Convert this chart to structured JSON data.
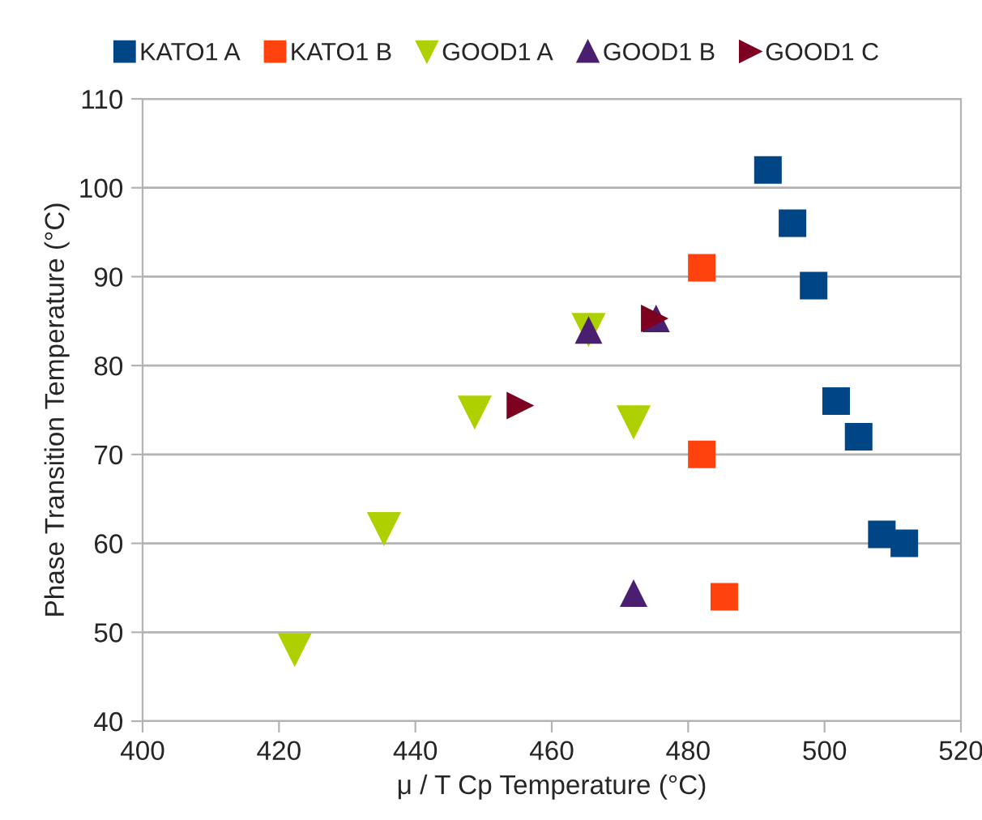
{
  "chart_data": {
    "type": "scatter",
    "xlabel": "μ / T Cp Temperature (°C)",
    "ylabel": "Phase Transition Temperature (°C)",
    "xlim": [
      400,
      520
    ],
    "xticks": [
      400,
      420,
      440,
      460,
      480,
      500,
      520
    ],
    "ylim": [
      40,
      110
    ],
    "yticks": [
      40,
      50,
      60,
      70,
      80,
      90,
      100,
      110
    ],
    "grid": "y",
    "legend": "top",
    "series": [
      {
        "name": "KATO1 A",
        "color": "#004586",
        "marker": "square",
        "x": [
          491.7,
          495.3,
          498.4,
          501.7,
          505,
          508.4,
          511.7
        ],
        "values": [
          102,
          96,
          89,
          76,
          72,
          61,
          60
        ]
      },
      {
        "name": "KATO1 B",
        "color": "#ff420e",
        "marker": "square",
        "x": [
          482,
          482,
          485.3
        ],
        "values": [
          91,
          70,
          54
        ]
      },
      {
        "name": "GOOD1 A",
        "color": "#aecf00",
        "marker": "triangle_down",
        "x": [
          422.3,
          435.4,
          448.7,
          465.4,
          472
        ],
        "values": [
          48,
          61.6,
          74.7,
          84,
          73.6
        ]
      },
      {
        "name": "GOOD1 B",
        "color": "#4b1f6f",
        "marker": "triangle",
        "x": [
          465.4,
          475.3,
          472
        ],
        "values": [
          84,
          85.3,
          54.4
        ]
      },
      {
        "name": "GOOD1 C",
        "color": "#7e0021",
        "marker": "triangle_right",
        "x": [
          455.4,
          475.1
        ],
        "values": [
          75.5,
          85.3
        ]
      }
    ]
  }
}
